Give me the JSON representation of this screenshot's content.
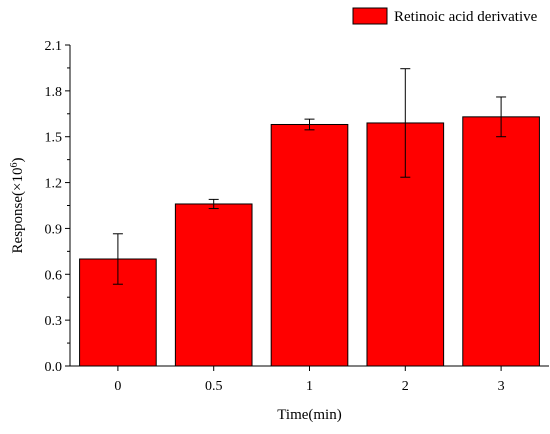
{
  "chart_data": {
    "type": "bar",
    "categories": [
      "0",
      "0.5",
      "1",
      "2",
      "3"
    ],
    "series": [
      {
        "name": "Retinoic acid derivative",
        "values": [
          0.7,
          1.06,
          1.58,
          1.59,
          1.63
        ],
        "error": [
          0.165,
          0.03,
          0.035,
          0.355,
          0.13
        ],
        "color": "#ff0000"
      }
    ],
    "title": "",
    "xlabel": "Time(min)",
    "ylabel_text": "Response(×10",
    "ylabel_superscript": "6",
    "ylabel_close": ")",
    "ylim": [
      0,
      2.1
    ],
    "yticks": [
      "0.0",
      "0.3",
      "0.6",
      "0.9",
      "1.2",
      "1.5",
      "1.8",
      "2.1"
    ],
    "legend_position": "top-right",
    "grid": false
  }
}
